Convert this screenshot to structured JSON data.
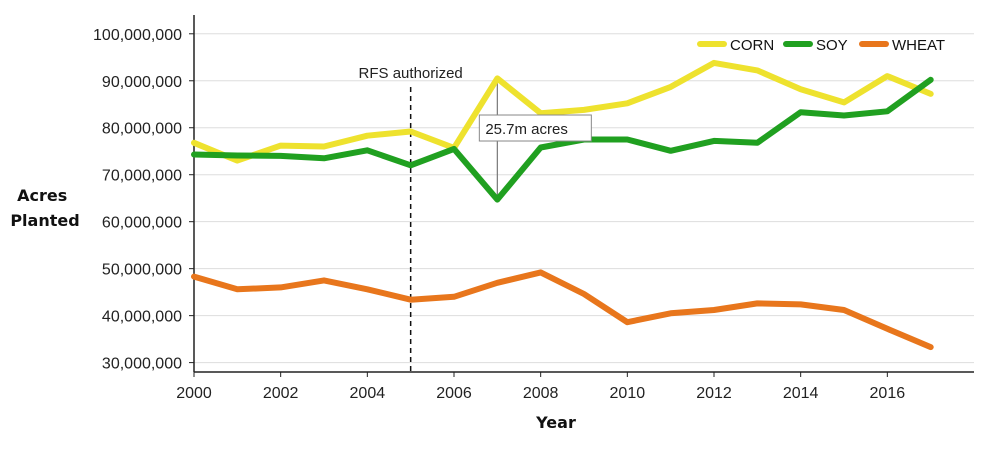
{
  "chart_data": {
    "type": "line",
    "title": "",
    "xlabel": "Year",
    "ylabel": "Acres Planted",
    "ylabel_lines": [
      "Acres",
      "Planted"
    ],
    "x": [
      2000,
      2001,
      2002,
      2003,
      2004,
      2005,
      2006,
      2007,
      2008,
      2009,
      2010,
      2011,
      2012,
      2013,
      2014,
      2015,
      2016,
      2017
    ],
    "xlim": [
      2000,
      2018
    ],
    "ylim": [
      28000000,
      104000000
    ],
    "xticks": [
      2000,
      2002,
      2004,
      2006,
      2008,
      2010,
      2012,
      2014,
      2016
    ],
    "xtick_labels": [
      "2000",
      "2002",
      "2004",
      "2006",
      "2008",
      "2010",
      "2012",
      "2014",
      "2016"
    ],
    "yticks": [
      30000000,
      40000000,
      50000000,
      60000000,
      70000000,
      80000000,
      90000000,
      100000000
    ],
    "ytick_labels": [
      "30,000,000",
      "40,000,000",
      "50,000,000",
      "60,000,000",
      "70,000,000",
      "80,000,000",
      "90,000,000",
      "100,000,000"
    ],
    "grid": true,
    "legend_position": "top-right",
    "series": [
      {
        "name": "CORN",
        "color": "#eee22e",
        "values": [
          76800000,
          73000000,
          76200000,
          76000000,
          78300000,
          79200000,
          75700000,
          90500000,
          83100000,
          83800000,
          85200000,
          88700000,
          93800000,
          92200000,
          88200000,
          85400000,
          91000000,
          87200000
        ]
      },
      {
        "name": "SOY",
        "color": "#20a020",
        "values": [
          74300000,
          74100000,
          74000000,
          73500000,
          75200000,
          72000000,
          75500000,
          64700000,
          75800000,
          77500000,
          77500000,
          75100000,
          77200000,
          76800000,
          83300000,
          82600000,
          83500000,
          90200000
        ]
      },
      {
        "name": "WHEAT",
        "color": "#e8761c",
        "values": [
          48300000,
          45600000,
          46000000,
          47500000,
          45600000,
          43400000,
          44000000,
          47000000,
          49200000,
          44600000,
          38600000,
          40500000,
          41200000,
          42600000,
          42400000,
          41200000,
          37200000,
          33300000
        ]
      }
    ],
    "annotations": [
      {
        "type": "vline",
        "x": 2005,
        "label": "RFS authorized"
      },
      {
        "type": "range",
        "x": 2007,
        "y_from": 64700000,
        "y_to": 90500000,
        "label": "25.7m acres"
      }
    ]
  }
}
